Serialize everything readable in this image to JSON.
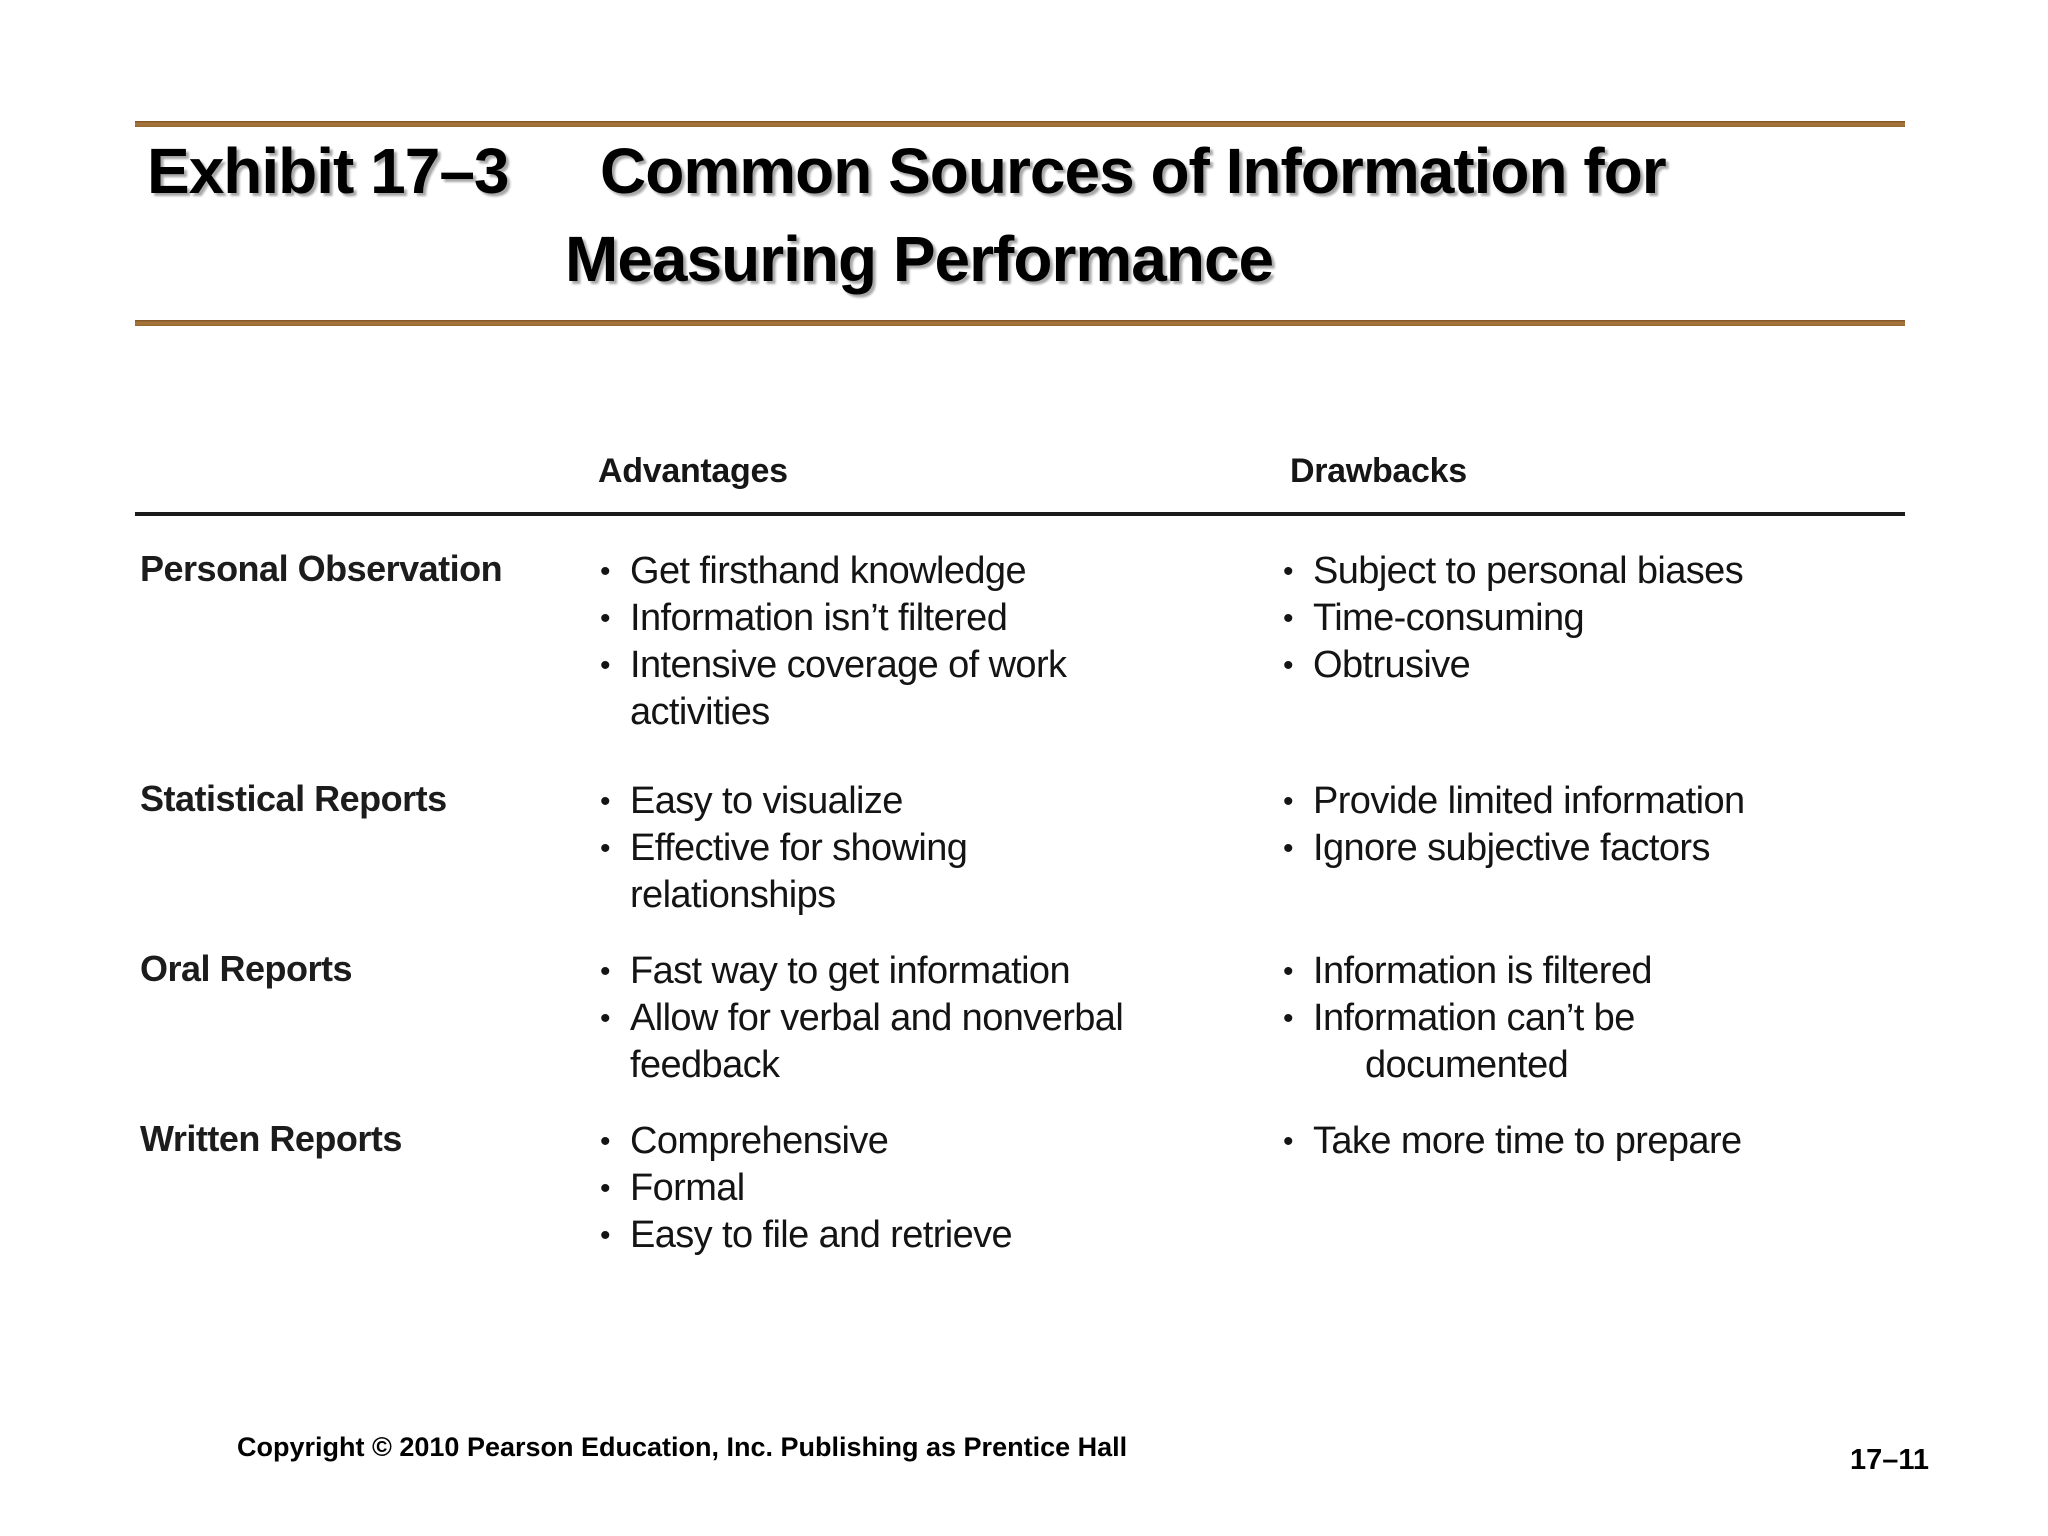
{
  "slide": {
    "title": {
      "exhibit_label": "Exhibit 17–3",
      "line1": "Common Sources of Information for",
      "line2": "Measuring Performance"
    },
    "table": {
      "bullet": "•",
      "column_headers": {
        "advantages": "Advantages",
        "drawbacks": "Drawbacks"
      },
      "rows": [
        {
          "label": "Personal Observation",
          "advantages": [
            {
              "text": "Get firsthand knowledge",
              "indent": 0
            },
            {
              "text": "Information isn’t filtered",
              "indent": 0
            },
            {
              "text": "Intensive coverage of work",
              "indent": 0
            },
            {
              "text": "activities",
              "indent": 1
            }
          ],
          "drawbacks": [
            {
              "text": "Subject to personal biases",
              "indent": 0
            },
            {
              "text": "Time-consuming",
              "indent": 0
            },
            {
              "text": "Obtrusive",
              "indent": 0
            }
          ]
        },
        {
          "label": "Statistical Reports",
          "advantages": [
            {
              "text": "Easy to visualize",
              "indent": 0
            },
            {
              "text": "Effective for showing",
              "indent": 0
            },
            {
              "text": "relationships",
              "indent": 1
            }
          ],
          "drawbacks": [
            {
              "text": "Provide limited information",
              "indent": 0
            },
            {
              "text": "Ignore subjective factors",
              "indent": 0
            }
          ]
        },
        {
          "label": "Oral Reports",
          "advantages": [
            {
              "text": "Fast way to get information",
              "indent": 0
            },
            {
              "text": "Allow for verbal and nonverbal",
              "indent": 0
            },
            {
              "text": "feedback",
              "indent": 1
            }
          ],
          "drawbacks": [
            {
              "text": "Information is filtered",
              "indent": 0
            },
            {
              "text": "Information can’t be",
              "indent": 0
            },
            {
              "text": "documented",
              "indent": 2
            }
          ]
        },
        {
          "label": "Written Reports",
          "advantages": [
            {
              "text": "Comprehensive",
              "indent": 0
            },
            {
              "text": "Formal",
              "indent": 0
            },
            {
              "text": "Easy to file and retrieve",
              "indent": 0
            }
          ],
          "drawbacks": [
            {
              "text": "Take more time to prepare",
              "indent": 0
            }
          ]
        }
      ]
    },
    "footer": {
      "copyright": "Copyright © 2010 Pearson Education, Inc. Publishing as Prentice Hall",
      "page_number": "17–11"
    },
    "colors": {
      "rule_brown": "#9c6b37",
      "title_text": "#000000",
      "body_text": "#141414"
    }
  }
}
